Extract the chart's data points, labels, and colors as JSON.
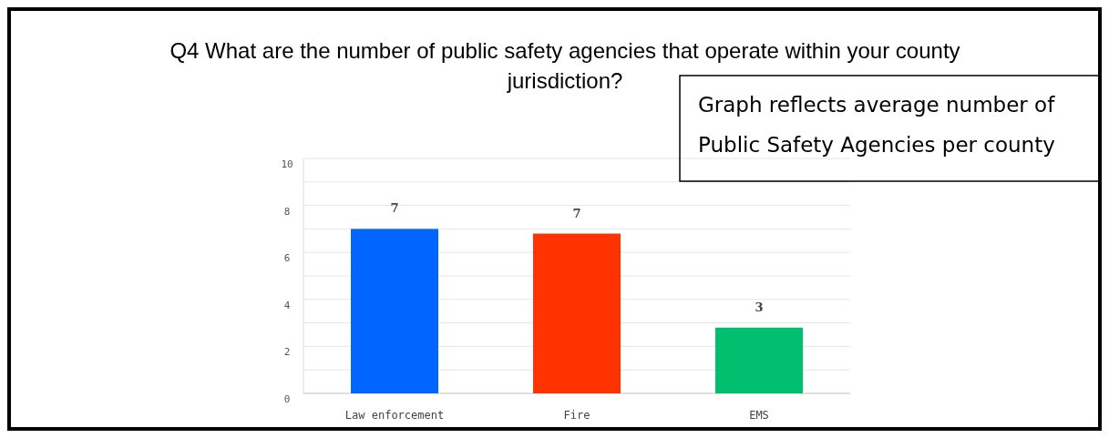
{
  "chart_data": {
    "type": "bar",
    "title": "Q4 What are the number of public safety agencies that operate within your county jurisdiction?",
    "categories": [
      "Law enforcement",
      "Fire",
      "EMS"
    ],
    "values": [
      7.0,
      6.8,
      2.8
    ],
    "colors": [
      "#0066ff",
      "#ff3300",
      "#00bf6f"
    ],
    "value_labels": [
      "7",
      "7",
      "3"
    ],
    "ylim": [
      0,
      10
    ],
    "yticks": [
      0,
      {
        "value": 1,
        "label": null
      },
      2,
      {
        "value": 3,
        "label": null
      },
      4,
      {
        "value": 5,
        "label": null
      },
      6,
      {
        "value": 7,
        "label": null
      },
      8,
      {
        "value": 9,
        "label": null
      },
      10
    ],
    "grid": "y",
    "annotations": [
      "Graph reflects average number of Public Safety Agencies per county"
    ]
  }
}
